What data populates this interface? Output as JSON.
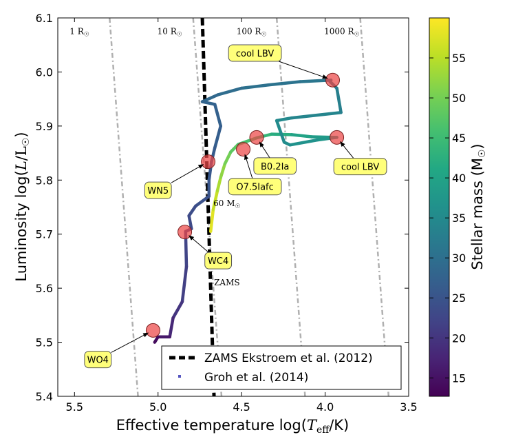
{
  "chart_data": {
    "type": "line",
    "xlabel_main": "Effective temperature log(",
    "xlabel_math": "T",
    "xlabel_sub": "eff",
    "xlabel_tail": "/K)",
    "ylabel_main": "Luminosity  log(",
    "ylabel_math": "L",
    "ylabel_mid": "/L",
    "ylabel_sun": "☉",
    "ylabel_tail": ")",
    "xlim": [
      5.6,
      3.5
    ],
    "ylim": [
      5.4,
      6.1
    ],
    "xticks": [
      "5.5",
      "5.0",
      "4.5",
      "4.0",
      "3.5"
    ],
    "xtick_values": [
      5.5,
      5.0,
      4.5,
      4.0,
      3.5
    ],
    "yticks": [
      "5.4",
      "5.5",
      "5.6",
      "5.7",
      "5.8",
      "5.9",
      "6.0",
      "6.1"
    ],
    "ytick_values": [
      5.4,
      5.5,
      5.6,
      5.7,
      5.8,
      5.9,
      6.0,
      6.1
    ],
    "radius_labels": [
      {
        "label": "1 R",
        "sun": "☉",
        "x": 5.47,
        "y": 6.07
      },
      {
        "label": "10 R",
        "sun": "☉",
        "x": 4.93,
        "y": 6.07
      },
      {
        "label": "100 R",
        "sun": "☉",
        "x": 4.44,
        "y": 6.07
      },
      {
        "label": "1000 R",
        "sun": "☉",
        "x": 3.9,
        "y": 6.07
      }
    ],
    "iso_radius_lines": [
      {
        "x_top": 5.29,
        "x_bottom": 5.12
      },
      {
        "x_top": 4.79,
        "x_bottom": 4.62
      },
      {
        "x_top": 4.29,
        "x_bottom": 4.12
      },
      {
        "x_top": 3.79,
        "x_bottom": 3.62
      }
    ],
    "zams": {
      "name": "ZAMS Ekstroem et al. (2012)",
      "label": "ZAMS",
      "label_x": 4.67,
      "label_y": 5.605,
      "points": [
        [
          4.735,
          6.1
        ],
        [
          4.665,
          5.4
        ]
      ]
    },
    "mass_label": {
      "text": "60 M",
      "sun": "☉",
      "x": 4.67,
      "y": 5.752
    },
    "track": {
      "name": "Groh et al. (2014)",
      "points": [
        [
          4.685,
          5.705,
          59
        ],
        [
          4.67,
          5.745,
          57
        ],
        [
          4.645,
          5.78,
          55
        ],
        [
          4.625,
          5.805,
          53
        ],
        [
          4.6,
          5.83,
          51
        ],
        [
          4.565,
          5.852,
          49
        ],
        [
          4.52,
          5.866,
          47
        ],
        [
          4.41,
          5.878,
          45
        ],
        [
          4.32,
          5.885,
          43
        ],
        [
          4.2,
          5.884,
          41
        ],
        [
          4.08,
          5.88,
          39
        ],
        [
          3.93,
          5.879,
          38
        ],
        [
          4.05,
          5.874,
          37
        ],
        [
          4.21,
          5.865,
          36
        ],
        [
          4.245,
          5.87,
          35.5
        ],
        [
          4.29,
          5.91,
          35
        ],
        [
          4.2,
          5.915,
          34.5
        ],
        [
          3.905,
          5.925,
          33.5
        ],
        [
          3.93,
          5.97,
          32.5
        ],
        [
          3.97,
          5.982,
          32
        ],
        [
          3.965,
          5.985,
          31.5
        ],
        [
          4.15,
          5.982,
          31
        ],
        [
          4.34,
          5.976,
          30.5
        ],
        [
          4.5,
          5.97,
          30
        ],
        [
          4.64,
          5.958,
          29
        ],
        [
          4.735,
          5.945,
          28
        ],
        [
          4.66,
          5.94,
          27.5
        ],
        [
          4.625,
          5.9,
          27
        ],
        [
          4.66,
          5.86,
          26.5
        ],
        [
          4.68,
          5.834,
          26
        ],
        [
          4.695,
          5.8,
          25.5
        ],
        [
          4.695,
          5.77,
          25
        ],
        [
          4.775,
          5.752,
          24
        ],
        [
          4.815,
          5.734,
          23.5
        ],
        [
          4.8,
          5.71,
          23
        ],
        [
          4.835,
          5.705,
          22.5
        ],
        [
          4.83,
          5.64,
          22
        ],
        [
          4.855,
          5.575,
          21
        ],
        [
          4.91,
          5.545,
          19
        ],
        [
          4.93,
          5.51,
          17
        ],
        [
          5.0,
          5.51,
          15
        ],
        [
          5.02,
          5.5,
          13
        ]
      ]
    },
    "markers": [
      {
        "name": "cool LBV",
        "x": 3.955,
        "y": 5.985
      },
      {
        "name": "cool LBV",
        "x": 3.93,
        "y": 5.879
      },
      {
        "name": "B0.2Ia",
        "x": 4.41,
        "y": 5.879
      },
      {
        "name": "O7.5Iafc",
        "x": 4.49,
        "y": 5.857
      },
      {
        "name": "WN5",
        "x": 4.7,
        "y": 5.834
      },
      {
        "name": "WC4",
        "x": 4.84,
        "y": 5.704
      },
      {
        "name": "WO4",
        "x": 5.03,
        "y": 5.522
      }
    ],
    "annotations": [
      {
        "text": "cool LBV",
        "x": 4.42,
        "y": 6.035,
        "tx": 3.955,
        "ty": 5.985
      },
      {
        "text": "B0.2Ia",
        "x": 4.3,
        "y": 5.826,
        "tx": 4.41,
        "ty": 5.879
      },
      {
        "text": "cool LBV",
        "x": 3.79,
        "y": 5.825,
        "tx": 3.93,
        "ty": 5.879
      },
      {
        "text": "O7.5Iafc",
        "x": 4.42,
        "y": 5.788,
        "tx": 4.49,
        "ty": 5.857
      },
      {
        "text": "WN5",
        "x": 5.0,
        "y": 5.781,
        "tx": 4.7,
        "ty": 5.834
      },
      {
        "text": "WC4",
        "x": 4.64,
        "y": 5.651,
        "tx": 4.84,
        "ty": 5.704
      },
      {
        "text": "WO4",
        "x": 5.36,
        "y": 5.468,
        "tx": 5.03,
        "ty": 5.522
      }
    ],
    "colorbar": {
      "label_main": "Stellar mass (M",
      "label_sun": "☉",
      "label_tail": ")",
      "vmin": 12.7,
      "vmax": 60,
      "ticks": [
        "15",
        "20",
        "25",
        "30",
        "35",
        "40",
        "45",
        "50",
        "55"
      ],
      "tick_values": [
        15,
        20,
        25,
        30,
        35,
        40,
        45,
        50,
        55
      ]
    },
    "legend": {
      "position": "lower-right",
      "entries": [
        "ZAMS Ekstroem et al. (2012)",
        "Groh et al. (2014)"
      ]
    }
  }
}
